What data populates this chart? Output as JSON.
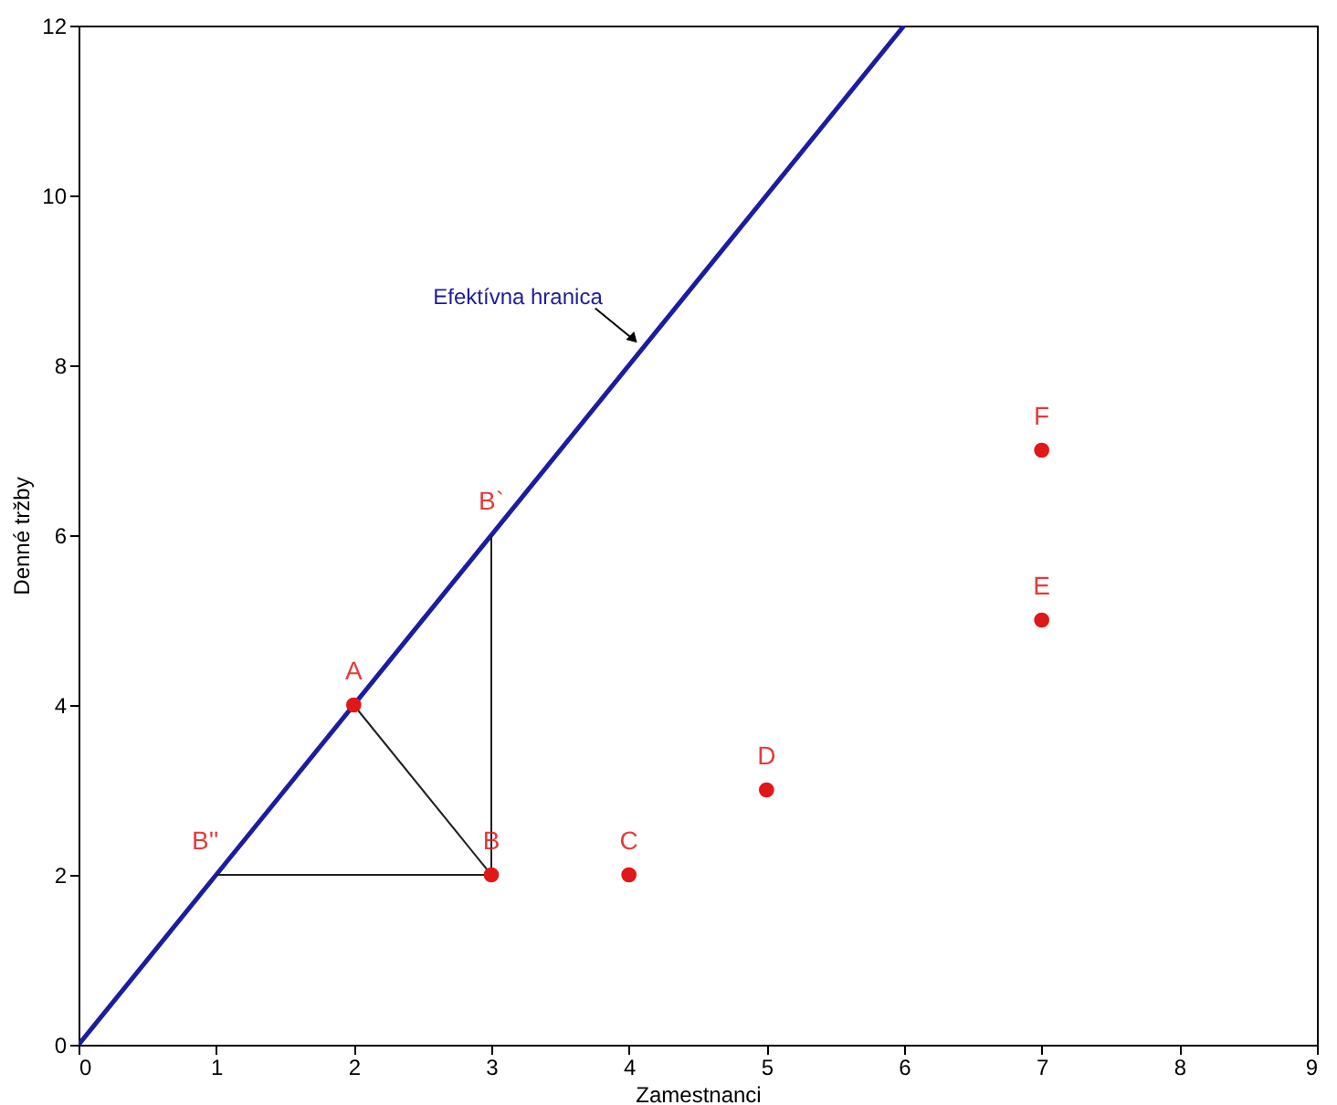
{
  "chart_data": {
    "type": "scatter",
    "xlabel": "Zamestnanci",
    "ylabel": "Denné tržby",
    "xlim": [
      0,
      9
    ],
    "xticks": [
      0,
      1,
      2,
      3,
      4,
      5,
      6,
      7,
      8,
      9
    ],
    "ylim": [
      0,
      12
    ],
    "yticks": [
      0,
      2,
      4,
      6,
      8,
      10,
      12
    ],
    "grid": false,
    "legend": false,
    "marker": "circle",
    "series": [
      {
        "type": "line",
        "marker": "none",
        "color": "#1c1ca0",
        "x": [
          0,
          6
        ],
        "values": [
          0,
          12
        ]
      },
      {
        "type": "line",
        "marker": "none",
        "color": "#202020",
        "x": [
          3,
          3
        ],
        "values": [
          2,
          6
        ]
      },
      {
        "type": "line",
        "marker": "none",
        "color": "#202020",
        "x": [
          3,
          2
        ],
        "values": [
          2,
          4
        ]
      },
      {
        "type": "line",
        "marker": "none",
        "color": "#202020",
        "x": [
          3,
          1
        ],
        "values": [
          2,
          2
        ]
      },
      {
        "type": "scatter",
        "color": "#e01818",
        "x": [
          2,
          3,
          4,
          5,
          7,
          7
        ],
        "values": [
          4,
          2,
          2,
          3,
          5,
          7
        ]
      }
    ],
    "annotations": [
      {
        "text": "A",
        "x": 2,
        "y": 4
      },
      {
        "text": "B",
        "x": 3,
        "y": 2
      },
      {
        "text": "C",
        "x": 4,
        "y": 2
      },
      {
        "text": "D",
        "x": 5,
        "y": 3
      },
      {
        "text": "E",
        "x": 7,
        "y": 5
      },
      {
        "text": "F",
        "x": 7,
        "y": 7
      },
      {
        "text": "B`",
        "x": 3,
        "y": 6
      },
      {
        "text": "B''",
        "x": 1,
        "y": 2
      },
      {
        "text": "Efektívna hranica",
        "x": 4.1,
        "y": 8.2
      }
    ]
  }
}
